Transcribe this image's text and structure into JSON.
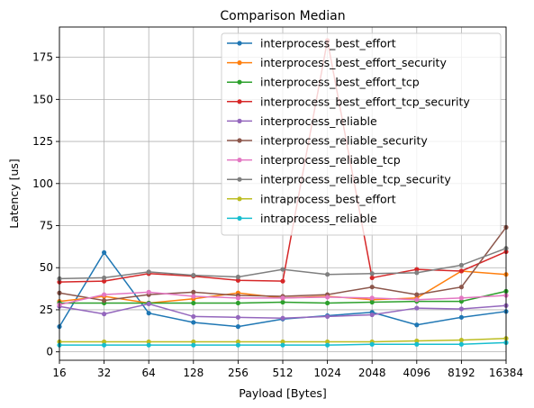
{
  "chart_data": {
    "type": "line",
    "title": "Comparison Median",
    "xlabel": "Payload [Bytes]",
    "ylabel": "Latency [us]",
    "x_scale": "log2",
    "categories": [
      "16",
      "32",
      "64",
      "128",
      "256",
      "512",
      "1024",
      "2048",
      "4096",
      "8192",
      "16384"
    ],
    "x": [
      16,
      32,
      64,
      128,
      256,
      512,
      1024,
      2048,
      4096,
      8192,
      16384
    ],
    "xlim": [
      16,
      16384
    ],
    "ylim": [
      -5,
      193
    ],
    "yticks": [
      0,
      25,
      50,
      75,
      100,
      125,
      150,
      175
    ],
    "grid": true,
    "legend_position": "top-right",
    "series": [
      {
        "name": "interprocess_best_effort",
        "color": "#1f77b4",
        "values": [
          15,
          59,
          23,
          17.5,
          15,
          19.5,
          21.5,
          23.5,
          16,
          20.5,
          24
        ]
      },
      {
        "name": "interprocess_best_effort_security",
        "color": "#ff7f0e",
        "values": [
          30,
          33,
          29,
          31.5,
          35,
          32,
          33,
          31,
          32,
          48,
          46
        ]
      },
      {
        "name": "interprocess_best_effort_tcp",
        "color": "#2ca02c",
        "values": [
          29,
          29,
          29,
          29,
          29,
          29.5,
          29,
          29.5,
          30,
          30,
          36
        ]
      },
      {
        "name": "interprocess_best_effort_tcp_security",
        "color": "#d62728",
        "values": [
          41.5,
          42,
          46.5,
          45,
          42.5,
          42,
          185,
          44,
          49,
          48,
          59.5
        ]
      },
      {
        "name": "interprocess_reliable",
        "color": "#9467bd",
        "values": [
          27,
          22.5,
          28.5,
          21,
          20.5,
          20,
          21,
          22,
          26,
          25.5,
          27.5
        ]
      },
      {
        "name": "interprocess_reliable_security",
        "color": "#8c564b",
        "values": [
          35,
          30.5,
          34,
          35.5,
          33.5,
          33,
          34,
          38.5,
          34,
          38.5,
          74
        ]
      },
      {
        "name": "interprocess_reliable_tcp",
        "color": "#e377c2",
        "values": [
          28,
          34,
          35.5,
          33,
          32,
          32,
          32.5,
          32,
          31,
          32,
          33.5
        ]
      },
      {
        "name": "interprocess_reliable_tcp_security",
        "color": "#7f7f7f",
        "values": [
          43.5,
          44,
          47.5,
          45.5,
          44.5,
          49,
          46,
          46.5,
          47,
          51.5,
          61.5
        ]
      },
      {
        "name": "intraprocess_best_effort",
        "color": "#bcbd22",
        "values": [
          6,
          6,
          6,
          6,
          6,
          6,
          6,
          6,
          6.5,
          7,
          8
        ]
      },
      {
        "name": "intraprocess_reliable",
        "color": "#17becf",
        "values": [
          4,
          4,
          4,
          4,
          4,
          4,
          4,
          4.5,
          4.5,
          4.5,
          5.5
        ]
      }
    ]
  }
}
